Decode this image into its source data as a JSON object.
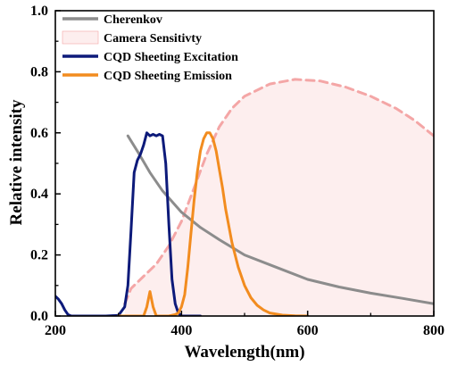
{
  "chart_data": {
    "type": "line",
    "xlabel": "Wavelength(nm)",
    "ylabel": "Relative intensity",
    "xlim": [
      200,
      800
    ],
    "ylim": [
      0,
      1.0
    ],
    "x_ticks": [
      "200",
      "400",
      "600",
      "800"
    ],
    "y_ticks": [
      "0.0",
      "0.2",
      "0.4",
      "0.6",
      "0.8",
      "1.0"
    ],
    "legend_position": "top-left",
    "series": [
      {
        "name": "Cherenkov",
        "color": "#8c8c8c",
        "style": "solid",
        "x": [
          315,
          330,
          350,
          370,
          400,
          430,
          460,
          500,
          550,
          600,
          650,
          700,
          750,
          800
        ],
        "y": [
          0.59,
          0.54,
          0.47,
          0.41,
          0.34,
          0.29,
          0.25,
          0.2,
          0.16,
          0.12,
          0.095,
          0.075,
          0.058,
          0.04
        ]
      },
      {
        "name": "Camera Sensitivty",
        "color": "#f4a6a6",
        "fill": "#fdeeee",
        "style": "dashed",
        "x": [
          310,
          320,
          340,
          360,
          380,
          400,
          420,
          440,
          460,
          480,
          500,
          540,
          580,
          620,
          660,
          700,
          740,
          770,
          800
        ],
        "y": [
          0.04,
          0.09,
          0.13,
          0.17,
          0.23,
          0.31,
          0.42,
          0.53,
          0.62,
          0.68,
          0.72,
          0.76,
          0.775,
          0.77,
          0.75,
          0.72,
          0.68,
          0.64,
          0.59
        ]
      },
      {
        "name": "CQD Sheeting Excitation",
        "color": "#0d1a7a",
        "style": "solid",
        "x": [
          200,
          205,
          210,
          215,
          220,
          225,
          240,
          280,
          300,
          310,
          315,
          320,
          325,
          330,
          335,
          340,
          345,
          350,
          355,
          360,
          365,
          370,
          375,
          380,
          385,
          390,
          395,
          400,
          410,
          430
        ],
        "y": [
          0.065,
          0.055,
          0.04,
          0.02,
          0.005,
          0.0,
          0.0,
          0.0,
          0.002,
          0.03,
          0.1,
          0.28,
          0.47,
          0.51,
          0.53,
          0.56,
          0.6,
          0.59,
          0.595,
          0.59,
          0.595,
          0.59,
          0.5,
          0.3,
          0.12,
          0.04,
          0.01,
          0.0,
          0.0,
          0.0
        ]
      },
      {
        "name": "CQD Sheeting Emission",
        "color": "#f28c1f",
        "style": "solid",
        "x": [
          300,
          340,
          345,
          350,
          355,
          360,
          380,
          390,
          395,
          400,
          405,
          410,
          415,
          420,
          425,
          430,
          435,
          440,
          445,
          450,
          455,
          460,
          465,
          470,
          480,
          490,
          500,
          510,
          520,
          530,
          540,
          560,
          580,
          600
        ],
        "y": [
          0.0,
          0.0,
          0.03,
          0.08,
          0.03,
          0.0,
          0.0,
          0.005,
          0.01,
          0.03,
          0.07,
          0.16,
          0.27,
          0.38,
          0.47,
          0.54,
          0.58,
          0.6,
          0.6,
          0.58,
          0.54,
          0.48,
          0.42,
          0.35,
          0.24,
          0.16,
          0.1,
          0.06,
          0.035,
          0.02,
          0.01,
          0.003,
          0.001,
          0.0
        ]
      }
    ]
  }
}
